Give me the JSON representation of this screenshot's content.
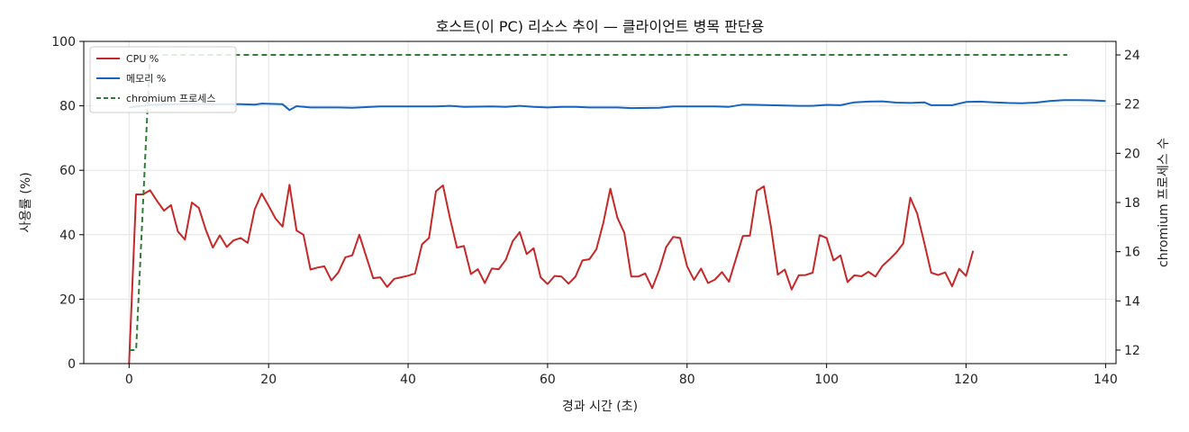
{
  "chart_data": {
    "type": "line",
    "title": "호스트(이 PC) 리소스 추이 — 클라이언트 병목 판단용",
    "xlabel": "경과 시간 (초)",
    "ylabel": "사용률 (%)",
    "y2label": "chromium 프로세스 수",
    "xlim": [
      -6.5,
      141.5
    ],
    "ylim": [
      0,
      100
    ],
    "y2lim": [
      11.45,
      24.55
    ],
    "xticks": [
      0,
      20,
      40,
      60,
      80,
      100,
      120,
      140
    ],
    "yticks": [
      0,
      20,
      40,
      60,
      80,
      100
    ],
    "y2ticks": [
      12,
      14,
      16,
      18,
      20,
      22,
      24
    ],
    "grid": true,
    "legend_position": "upper-left",
    "series": [
      {
        "name": "CPU %",
        "axis": "left",
        "color": "#c62828",
        "style": "solid",
        "points": [
          [
            0,
            0
          ],
          [
            1,
            52.5
          ],
          [
            2,
            52.5
          ],
          [
            3,
            53.8
          ],
          [
            4,
            50.5
          ],
          [
            5,
            47.5
          ],
          [
            6,
            49.2
          ],
          [
            7,
            41
          ],
          [
            8,
            38.5
          ],
          [
            9,
            50
          ],
          [
            10,
            48.3
          ],
          [
            11,
            41.5
          ],
          [
            12,
            36
          ],
          [
            13,
            39.8
          ],
          [
            14,
            36.2
          ],
          [
            15,
            38.3
          ],
          [
            16,
            39
          ],
          [
            17,
            37.5
          ],
          [
            18,
            47.8
          ],
          [
            19,
            52.8
          ],
          [
            20,
            49
          ],
          [
            21,
            45
          ],
          [
            22,
            42.5
          ],
          [
            23,
            55.5
          ],
          [
            24,
            41.3
          ],
          [
            25,
            40
          ],
          [
            26,
            29.2
          ],
          [
            27,
            29.8
          ],
          [
            28,
            30.2
          ],
          [
            29,
            25.8
          ],
          [
            30,
            28.3
          ],
          [
            31,
            33
          ],
          [
            32,
            33.6
          ],
          [
            33,
            40
          ],
          [
            34,
            33.2
          ],
          [
            35,
            26.5
          ],
          [
            36,
            26.8
          ],
          [
            37,
            23.8
          ],
          [
            38,
            26.3
          ],
          [
            39,
            26.8
          ],
          [
            40,
            27.3
          ],
          [
            41,
            28
          ],
          [
            42,
            37
          ],
          [
            43,
            39
          ],
          [
            44,
            53.5
          ],
          [
            45,
            55.3
          ],
          [
            46,
            45.2
          ],
          [
            47,
            36
          ],
          [
            48,
            36.5
          ],
          [
            49,
            27.8
          ],
          [
            50,
            29.3
          ],
          [
            51,
            25
          ],
          [
            52,
            29.5
          ],
          [
            53,
            29.3
          ],
          [
            54,
            32.2
          ],
          [
            55,
            38
          ],
          [
            56,
            40.8
          ],
          [
            57,
            34
          ],
          [
            58,
            35.8
          ],
          [
            59,
            26.8
          ],
          [
            60,
            24.7
          ],
          [
            61,
            27.2
          ],
          [
            62,
            27
          ],
          [
            63,
            24.8
          ],
          [
            64,
            27
          ],
          [
            65,
            32
          ],
          [
            66,
            32.4
          ],
          [
            67,
            35.5
          ],
          [
            68,
            43.8
          ],
          [
            69,
            54.3
          ],
          [
            70,
            45.3
          ],
          [
            71,
            40.6
          ],
          [
            72,
            27
          ],
          [
            73,
            27
          ],
          [
            74,
            28
          ],
          [
            75,
            23.4
          ],
          [
            76,
            29
          ],
          [
            77,
            36.2
          ],
          [
            78,
            39.3
          ],
          [
            79,
            39
          ],
          [
            80,
            30.2
          ],
          [
            81,
            26
          ],
          [
            82,
            29.5
          ],
          [
            83,
            25
          ],
          [
            84,
            26.1
          ],
          [
            85,
            28.4
          ],
          [
            86,
            25.4
          ],
          [
            87,
            32.5
          ],
          [
            88,
            39.6
          ],
          [
            89,
            39.7
          ],
          [
            90,
            53.6
          ],
          [
            91,
            55
          ],
          [
            92,
            42.8
          ],
          [
            93,
            27.6
          ],
          [
            94,
            29.2
          ],
          [
            95,
            23
          ],
          [
            96,
            27.4
          ],
          [
            97,
            27.5
          ],
          [
            98,
            28.2
          ],
          [
            99,
            39.9
          ],
          [
            100,
            39
          ],
          [
            101,
            32
          ],
          [
            102,
            33.6
          ],
          [
            103,
            25.3
          ],
          [
            104,
            27.4
          ],
          [
            105,
            27.1
          ],
          [
            106,
            28.5
          ],
          [
            107,
            27
          ],
          [
            108,
            30.3
          ],
          [
            109,
            32.3
          ],
          [
            110,
            34.5
          ],
          [
            111,
            37.3
          ],
          [
            112,
            51.5
          ],
          [
            113,
            46.5
          ],
          [
            114,
            37.5
          ],
          [
            115,
            28.2
          ],
          [
            116,
            27.5
          ],
          [
            117,
            28.3
          ],
          [
            118,
            24
          ],
          [
            119,
            29.4
          ],
          [
            120,
            27.2
          ],
          [
            121,
            35
          ]
        ]
      },
      {
        "name": "메모리 %",
        "axis": "left",
        "color": "#1565c0",
        "style": "solid",
        "points": [
          [
            0,
            79.5
          ],
          [
            3,
            80.3
          ],
          [
            8,
            80.6
          ],
          [
            12,
            80.5
          ],
          [
            16,
            80.5
          ],
          [
            18,
            80.4
          ],
          [
            19,
            80.7
          ],
          [
            22,
            80.5
          ],
          [
            23,
            78.7
          ],
          [
            24,
            79.9
          ],
          [
            26,
            79.5
          ],
          [
            30,
            79.5
          ],
          [
            32,
            79.4
          ],
          [
            36,
            79.8
          ],
          [
            40,
            79.8
          ],
          [
            44,
            79.8
          ],
          [
            46,
            80
          ],
          [
            48,
            79.7
          ],
          [
            52,
            79.8
          ],
          [
            54,
            79.7
          ],
          [
            56,
            80
          ],
          [
            58,
            79.7
          ],
          [
            60,
            79.5
          ],
          [
            62,
            79.7
          ],
          [
            64,
            79.7
          ],
          [
            66,
            79.5
          ],
          [
            70,
            79.5
          ],
          [
            72,
            79.3
          ],
          [
            76,
            79.4
          ],
          [
            78,
            79.8
          ],
          [
            84,
            79.8
          ],
          [
            86,
            79.7
          ],
          [
            88,
            80.4
          ],
          [
            90,
            80.3
          ],
          [
            96,
            80
          ],
          [
            98,
            80
          ],
          [
            100,
            80.3
          ],
          [
            102,
            80.2
          ],
          [
            104,
            81.1
          ],
          [
            106,
            81.3
          ],
          [
            108,
            81.4
          ],
          [
            110,
            81
          ],
          [
            112,
            80.9
          ],
          [
            114,
            81.1
          ],
          [
            115,
            80.2
          ],
          [
            116,
            80.2
          ],
          [
            118,
            80.2
          ],
          [
            120,
            81.2
          ],
          [
            122,
            81.3
          ],
          [
            124,
            81.1
          ],
          [
            126,
            80.9
          ],
          [
            128,
            80.8
          ],
          [
            130,
            81
          ],
          [
            132,
            81.5
          ],
          [
            134,
            81.8
          ],
          [
            136,
            81.8
          ],
          [
            138,
            81.7
          ],
          [
            140,
            81.5
          ]
        ]
      },
      {
        "name": "chromium 프로세스",
        "axis": "right",
        "color": "#2e7d32",
        "style": "dashed",
        "points": [
          [
            0,
            12
          ],
          [
            1,
            12
          ],
          [
            3,
            24
          ],
          [
            134.5,
            24
          ]
        ]
      }
    ],
    "legend": [
      "CPU %",
      "메모리 %",
      "chromium 프로세스"
    ]
  }
}
